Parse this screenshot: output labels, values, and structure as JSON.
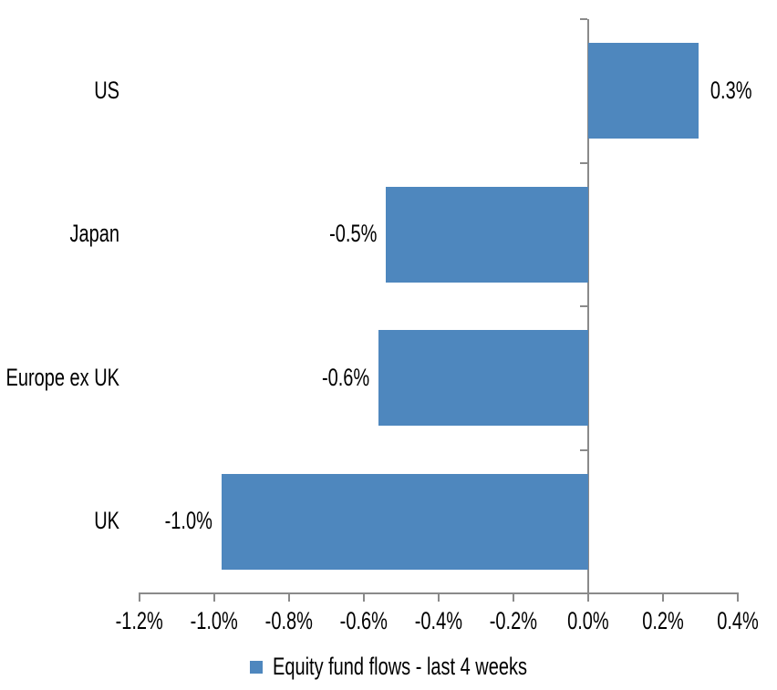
{
  "chart_data": {
    "type": "bar",
    "orientation": "horizontal",
    "title": "",
    "xlabel": "",
    "ylabel": "",
    "categories": [
      "US",
      "Japan",
      "Europe ex UK",
      "UK"
    ],
    "values": [
      0.3,
      -0.5,
      -0.6,
      -1.0
    ],
    "data_labels": [
      "0.3%",
      "-0.5%",
      "-0.6%",
      "-1.0%"
    ],
    "plot_values": [
      0.295,
      -0.54,
      -0.56,
      -0.98
    ],
    "unit": "%",
    "xlim": [
      -1.2,
      0.4
    ],
    "x_tick_values": [
      -1.2,
      -1.0,
      -0.8,
      -0.6,
      -0.4,
      -0.2,
      0.0,
      0.2,
      0.4
    ],
    "x_tick_labels": [
      "-1.2%",
      "-1.0%",
      "-0.8%",
      "-0.6%",
      "-0.4%",
      "-0.2%",
      "0.0%",
      "0.2%",
      "0.4%"
    ],
    "grid": false,
    "legend_position": "bottom",
    "legend": [
      {
        "label": "Equity fund flows - last 4 weeks",
        "color": "#4E87BE"
      }
    ],
    "colors": {
      "bar": "#4E87BE",
      "axis": "#8A8A8A",
      "text": "#000000",
      "background": "#FFFFFF"
    }
  }
}
